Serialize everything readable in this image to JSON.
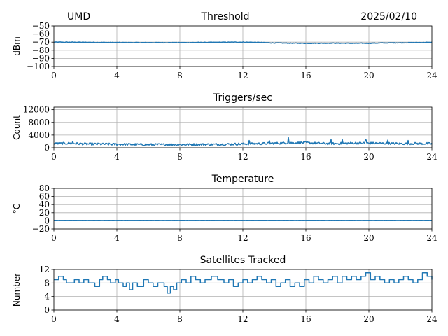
{
  "header": {
    "left": "UMD",
    "center": "Threshold",
    "right": "2025/02/10"
  },
  "series_color": "#1f77b4",
  "chart_data": [
    {
      "type": "line",
      "title": "",
      "ylabel": "dBm",
      "xlim": [
        0,
        24
      ],
      "ylim": [
        -100,
        -50
      ],
      "xticks": [
        0,
        4,
        8,
        12,
        16,
        20,
        24
      ],
      "yticks": [
        -100,
        -90,
        -80,
        -70,
        -60,
        -50
      ],
      "ytick_labels": [
        "−100",
        "−90",
        "−80",
        "−70",
        "−60",
        "−50"
      ],
      "grid": true,
      "x": [
        0,
        2,
        4,
        6,
        8,
        10,
        12,
        13,
        14,
        15,
        16,
        17,
        18,
        19,
        20,
        21,
        22,
        23,
        24
      ],
      "y": [
        -70,
        -70.2,
        -70.5,
        -70.6,
        -70.6,
        -70.3,
        -70,
        -70.4,
        -71,
        -71.3,
        -71.5,
        -71.4,
        -71.3,
        -71.5,
        -71.4,
        -71,
        -70.8,
        -70.5,
        -70.3
      ],
      "noise": 0.8
    },
    {
      "type": "line",
      "title": "Triggers/sec",
      "ylabel": "Count",
      "xlim": [
        0,
        24
      ],
      "ylim": [
        0,
        12800
      ],
      "xticks": [
        0,
        4,
        8,
        12,
        16,
        20,
        24
      ],
      "yticks": [
        0,
        4000,
        8000,
        12000
      ],
      "ytick_labels": [
        "0",
        "4000",
        "8000",
        "12000"
      ],
      "grid": true,
      "x": [
        0,
        1,
        2,
        4,
        6,
        8,
        10,
        12,
        13,
        14,
        15,
        16,
        17,
        18,
        19,
        20,
        21,
        22,
        23,
        24
      ],
      "y": [
        1300,
        1400,
        1200,
        1100,
        1000,
        1000,
        1050,
        1200,
        1300,
        1400,
        1550,
        1600,
        1350,
        1300,
        1500,
        1450,
        1400,
        1300,
        1350,
        1300
      ],
      "noise": 700,
      "spikes": [
        [
          1.2,
          2000
        ],
        [
          12.4,
          2300
        ],
        [
          13.7,
          2200
        ],
        [
          14.9,
          3300
        ],
        [
          17.6,
          2600
        ],
        [
          18.3,
          2700
        ],
        [
          19.8,
          2500
        ],
        [
          21.2,
          2400
        ],
        [
          22.5,
          2300
        ]
      ]
    },
    {
      "type": "line",
      "title": "Temperature",
      "ylabel": "°C",
      "xlim": [
        0,
        24
      ],
      "ylim": [
        -20,
        80
      ],
      "xticks": [
        0,
        4,
        8,
        12,
        16,
        20,
        24
      ],
      "yticks": [
        -20,
        0,
        20,
        40,
        60,
        80
      ],
      "ytick_labels": [
        "−20",
        "0",
        "20",
        "40",
        "60",
        "80"
      ],
      "grid": true,
      "x": [
        0,
        24
      ],
      "y": [
        1,
        1
      ],
      "noise": 0.3
    },
    {
      "type": "line",
      "title": "Satellites Tracked",
      "ylabel": "Number",
      "xlim": [
        0,
        24
      ],
      "ylim": [
        0,
        12
      ],
      "xticks": [
        0,
        4,
        8,
        12,
        16,
        20,
        24
      ],
      "yticks": [
        0,
        4,
        8,
        12
      ],
      "ytick_labels": [
        "0",
        "4",
        "8",
        "12"
      ],
      "grid": true,
      "step": true,
      "x": [
        0,
        0.3,
        0.6,
        0.8,
        1.3,
        1.6,
        1.9,
        2.2,
        2.6,
        2.9,
        3.1,
        3.4,
        3.6,
        3.9,
        4.1,
        4.4,
        4.6,
        4.8,
        5.0,
        5.3,
        5.7,
        6.0,
        6.3,
        6.6,
        7.0,
        7.2,
        7.4,
        7.6,
        7.8,
        8.1,
        8.4,
        8.7,
        9.0,
        9.3,
        9.6,
        10.0,
        10.4,
        10.8,
        11.1,
        11.4,
        11.7,
        12.0,
        12.3,
        12.6,
        12.9,
        13.2,
        13.5,
        13.8,
        14.1,
        14.4,
        14.7,
        15.0,
        15.3,
        15.6,
        15.9,
        16.2,
        16.5,
        16.8,
        17.1,
        17.4,
        17.7,
        18.0,
        18.3,
        18.6,
        18.9,
        19.2,
        19.5,
        19.8,
        20.1,
        20.4,
        20.7,
        21.0,
        21.3,
        21.6,
        21.9,
        22.2,
        22.5,
        22.8,
        23.1,
        23.4,
        23.7,
        24
      ],
      "y": [
        9,
        10,
        9,
        8,
        9,
        8,
        9,
        8,
        7,
        9,
        10,
        9,
        8,
        9,
        8,
        7,
        8,
        6,
        8,
        7,
        9,
        8,
        7,
        8,
        7,
        5,
        7,
        6,
        8,
        9,
        8,
        10,
        9,
        8,
        9,
        10,
        9,
        8,
        9,
        7,
        8,
        9,
        8,
        9,
        10,
        9,
        8,
        9,
        7,
        8,
        9,
        7,
        8,
        7,
        9,
        8,
        10,
        9,
        8,
        9,
        10,
        8,
        10,
        9,
        10,
        9,
        10,
        11,
        9,
        10,
        9,
        8,
        9,
        8,
        9,
        10,
        9,
        8,
        9,
        11,
        10,
        9
      ]
    }
  ]
}
